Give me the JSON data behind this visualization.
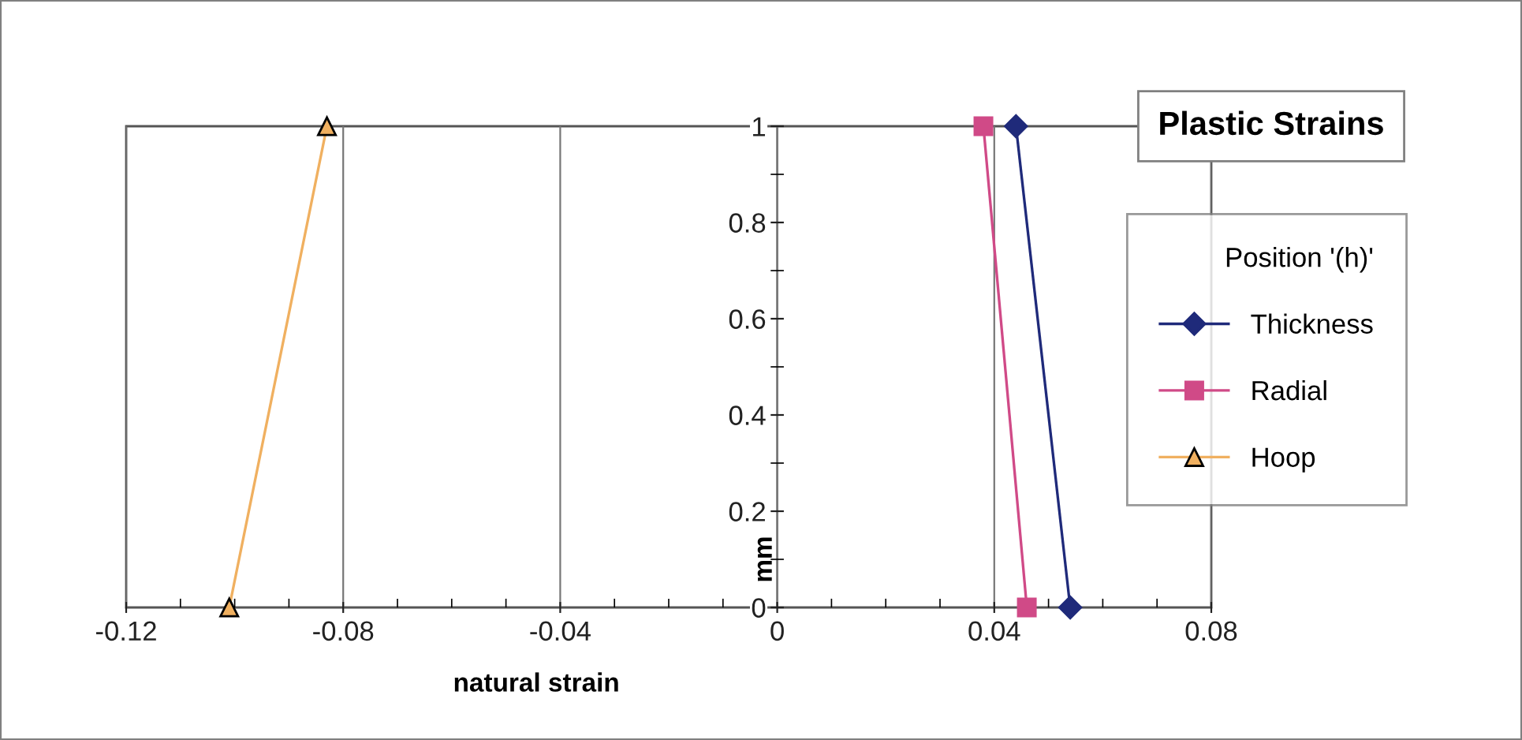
{
  "chart_data": {
    "type": "line",
    "title": "Plastic Strains",
    "xlabel": "natural strain",
    "ylabel": "mm",
    "legend_title": "Position '(h)'",
    "series": [
      {
        "name": "Thickness",
        "color": "#1f2a7a",
        "marker": "diamond",
        "x": [
          0.054,
          0.044
        ],
        "values": [
          0,
          1
        ]
      },
      {
        "name": "Radial",
        "color": "#d04a87",
        "marker": "square",
        "x": [
          0.046,
          0.038
        ],
        "values": [
          0,
          1
        ]
      },
      {
        "name": "Hoop",
        "color": "#f0b060",
        "marker": "triangle",
        "x": [
          -0.101,
          -0.083
        ],
        "values": [
          0,
          1
        ]
      }
    ],
    "xlim": [
      -0.12,
      0.08
    ],
    "xticks": [
      -0.12,
      -0.08,
      -0.04,
      0,
      0.04,
      0.08
    ],
    "ylim": [
      0,
      1
    ],
    "yticks": [
      0,
      0.2,
      0.4,
      0.6,
      0.8,
      1
    ],
    "grid": "x",
    "legend": "right"
  }
}
